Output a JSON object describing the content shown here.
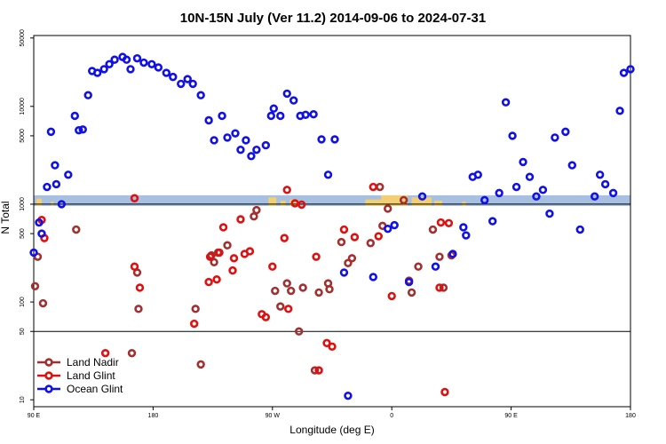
{
  "chart_data": {
    "type": "scatter",
    "title": "10N-15N July (Ver 11.2)   2014-09-06 to 2024-07-31",
    "xlabel": "Longitude (deg E)",
    "ylabel": "N Total",
    "x_ticks": [
      {
        "value": 90,
        "label": "90 E"
      },
      {
        "value": 180,
        "label": "180"
      },
      {
        "value": 270,
        "label": "90 W"
      },
      {
        "value": 360,
        "label": "0"
      },
      {
        "value": 450,
        "label": "90 E"
      },
      {
        "value": 540,
        "label": "180"
      }
    ],
    "y_ticks": [
      {
        "value": 10,
        "label": "10"
      },
      {
        "value": 50,
        "label": "50"
      },
      {
        "value": 100,
        "label": "100"
      },
      {
        "value": 500,
        "label": "500"
      },
      {
        "value": 1000,
        "label": "1000"
      },
      {
        "value": 5000,
        "label": "5000"
      },
      {
        "value": 10000,
        "label": "10000"
      },
      {
        "value": 50000,
        "label": "50000"
      }
    ],
    "xlim": [
      90,
      540
    ],
    "ylim": [
      8.5,
      53000
    ],
    "y_scale": "log",
    "grid": false,
    "legend_position": "bottom-left",
    "separators": [
      50,
      1000
    ],
    "map_strip": {
      "ocean_color": "#a7bfe0",
      "land_color": "#f2cf73"
    },
    "series": [
      {
        "name": "Land Nadir",
        "color": "#a33030",
        "points": [
          [
            91,
            145
          ],
          [
            93,
            290
          ],
          [
            97,
            97
          ],
          [
            122,
            550
          ],
          [
            164,
            30
          ],
          [
            168,
            200
          ],
          [
            169,
            85
          ],
          [
            212,
            85
          ],
          [
            216,
            23
          ],
          [
            224,
            300
          ],
          [
            226,
            255
          ],
          [
            229,
            320
          ],
          [
            236,
            380
          ],
          [
            256,
            750
          ],
          [
            258,
            870
          ],
          [
            272,
            130
          ],
          [
            276,
            90
          ],
          [
            281,
            155
          ],
          [
            284,
            130
          ],
          [
            290,
            50
          ],
          [
            293,
            140
          ],
          [
            302,
            20
          ],
          [
            305,
            125
          ],
          [
            312,
            155
          ],
          [
            313,
            135
          ],
          [
            322,
            410
          ],
          [
            327,
            250
          ],
          [
            330,
            280
          ],
          [
            344,
            400
          ],
          [
            351,
            1500
          ],
          [
            353,
            600
          ],
          [
            357,
            900
          ],
          [
            369,
            1100
          ],
          [
            373,
            165
          ],
          [
            375,
            125
          ],
          [
            380,
            230
          ],
          [
            391,
            550
          ],
          [
            396,
            290
          ],
          [
            399,
            140
          ],
          [
            405,
            300
          ]
        ]
      },
      {
        "name": "Land Glint",
        "color": "#e01010",
        "points": [
          [
            96,
            690
          ],
          [
            98,
            450
          ],
          [
            144,
            30
          ],
          [
            166,
            230
          ],
          [
            166,
            1150
          ],
          [
            170,
            140
          ],
          [
            211,
            60
          ],
          [
            222,
            160
          ],
          [
            223,
            290
          ],
          [
            228,
            170
          ],
          [
            230,
            320
          ],
          [
            233,
            580
          ],
          [
            240,
            210
          ],
          [
            241,
            280
          ],
          [
            246,
            700
          ],
          [
            249,
            310
          ],
          [
            253,
            330
          ],
          [
            262,
            75
          ],
          [
            265,
            70
          ],
          [
            270,
            230
          ],
          [
            279,
            450
          ],
          [
            281,
            1400
          ],
          [
            282,
            85
          ],
          [
            287,
            1020
          ],
          [
            292,
            990
          ],
          [
            303,
            290
          ],
          [
            305,
            20
          ],
          [
            311,
            38
          ],
          [
            315,
            35
          ],
          [
            324,
            550
          ],
          [
            332,
            460
          ],
          [
            346,
            1500
          ],
          [
            350,
            470
          ],
          [
            360,
            115
          ],
          [
            396,
            140
          ],
          [
            397,
            650
          ],
          [
            400,
            12
          ],
          [
            403,
            640
          ]
        ]
      },
      {
        "name": "Ocean Glint",
        "color": "#1010e8",
        "points": [
          [
            90,
            320
          ],
          [
            94,
            650
          ],
          [
            96,
            500
          ],
          [
            100,
            1500
          ],
          [
            103,
            5500
          ],
          [
            106,
            2500
          ],
          [
            107,
            1600
          ],
          [
            111,
            1000
          ],
          [
            116,
            2000
          ],
          [
            121,
            8000
          ],
          [
            124,
            5700
          ],
          [
            127,
            5800
          ],
          [
            131,
            13000
          ],
          [
            134,
            23000
          ],
          [
            138,
            22000
          ],
          [
            143,
            24000
          ],
          [
            147,
            27000
          ],
          [
            151,
            30000
          ],
          [
            157,
            32000
          ],
          [
            160,
            30000
          ],
          [
            163,
            24000
          ],
          [
            168,
            31000
          ],
          [
            173,
            28000
          ],
          [
            179,
            27000
          ],
          [
            184,
            25000
          ],
          [
            190,
            22000
          ],
          [
            195,
            20000
          ],
          [
            201,
            17000
          ],
          [
            206,
            19000
          ],
          [
            210,
            17000
          ],
          [
            216,
            13000
          ],
          [
            222,
            7200
          ],
          [
            226,
            4500
          ],
          [
            232,
            8000
          ],
          [
            236,
            4800
          ],
          [
            242,
            5300
          ],
          [
            246,
            3600
          ],
          [
            250,
            4500
          ],
          [
            254,
            3100
          ],
          [
            258,
            3600
          ],
          [
            265,
            4000
          ],
          [
            269,
            8000
          ],
          [
            271,
            9500
          ],
          [
            276,
            8000
          ],
          [
            281,
            13500
          ],
          [
            286,
            11500
          ],
          [
            291,
            8000
          ],
          [
            295,
            8200
          ],
          [
            301,
            8300
          ],
          [
            307,
            4600
          ],
          [
            312,
            2000
          ],
          [
            317,
            4600
          ],
          [
            324,
            200
          ],
          [
            327,
            11
          ],
          [
            346,
            180
          ],
          [
            357,
            560
          ],
          [
            362,
            610
          ],
          [
            373,
            160
          ],
          [
            383,
            1200
          ],
          [
            393,
            230
          ],
          [
            406,
            310
          ],
          [
            414,
            580
          ],
          [
            416,
            480
          ],
          [
            421,
            1900
          ],
          [
            425,
            2000
          ],
          [
            430,
            1100
          ],
          [
            436,
            670
          ],
          [
            441,
            1300
          ],
          [
            446,
            11000
          ],
          [
            451,
            5000
          ],
          [
            454,
            1500
          ],
          [
            459,
            2700
          ],
          [
            464,
            1900
          ],
          [
            469,
            1200
          ],
          [
            474,
            1400
          ],
          [
            479,
            800
          ],
          [
            483,
            4800
          ],
          [
            491,
            5500
          ],
          [
            496,
            2500
          ],
          [
            502,
            550
          ],
          [
            513,
            1200
          ],
          [
            517,
            2000
          ],
          [
            521,
            1600
          ],
          [
            527,
            1300
          ],
          [
            532,
            9000
          ],
          [
            535,
            22000
          ],
          [
            540,
            24000
          ]
        ]
      }
    ]
  }
}
